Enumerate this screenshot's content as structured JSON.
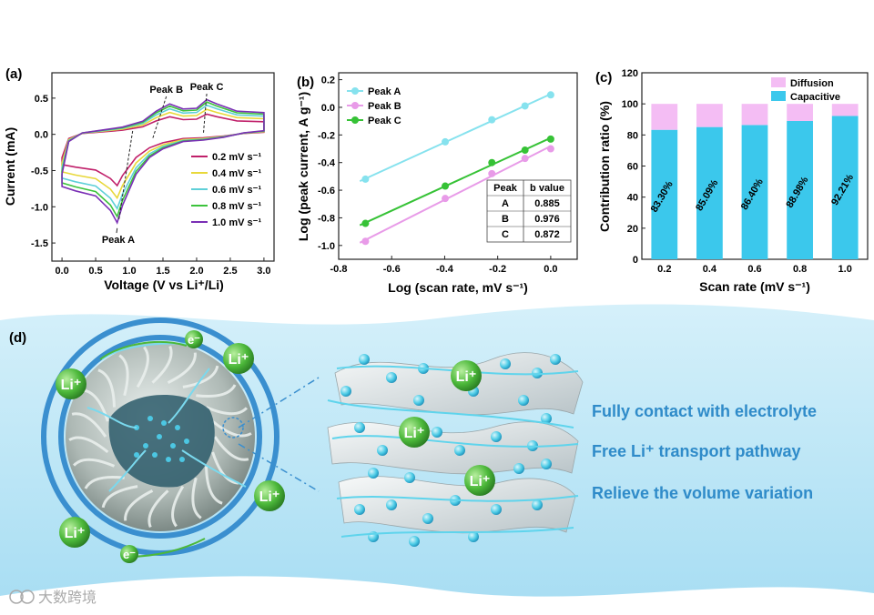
{
  "panels": {
    "a": "(a)",
    "b": "(b)",
    "c": "(c)",
    "d": "(d)"
  },
  "chart_data": [
    {
      "type": "line",
      "panel": "(a)",
      "xlabel": "Voltage (V vs Li⁺/Li)",
      "ylabel": "Current (mA)",
      "xlim": [
        -0.15,
        3.15
      ],
      "ylim": [
        -1.75,
        0.85
      ],
      "xticks": [
        "0.0",
        "0.5",
        "1.0",
        "1.5",
        "2.0",
        "2.5",
        "3.0"
      ],
      "yticks": [
        "0.5",
        "0.0",
        "-0.5",
        "-1.0",
        "-1.5"
      ],
      "annotations": [
        "Peak A",
        "Peak B",
        "Peak C"
      ],
      "series": [
        {
          "name": "0.2 mV s⁻¹",
          "color": "#c0206a",
          "scale": 0.58
        },
        {
          "name": "0.4 mV s⁻¹",
          "color": "#e8d83a",
          "scale": 0.72
        },
        {
          "name": "0.6 mV s⁻¹",
          "color": "#5fd0d8",
          "scale": 0.84
        },
        {
          "name": "0.8 mV s⁻¹",
          "color": "#3cc33c",
          "scale": 0.93
        },
        {
          "name": "1.0 mV s⁻¹",
          "color": "#7a2fb5",
          "scale": 1.0
        }
      ],
      "outer_curve": {
        "upper": [
          [
            0,
            -0.55
          ],
          [
            0.1,
            -0.1
          ],
          [
            0.3,
            0.02
          ],
          [
            0.6,
            0.06
          ],
          [
            0.9,
            0.1
          ],
          [
            1.2,
            0.18
          ],
          [
            1.4,
            0.32
          ],
          [
            1.6,
            0.42
          ],
          [
            1.8,
            0.35
          ],
          [
            2.0,
            0.36
          ],
          [
            2.15,
            0.48
          ],
          [
            2.3,
            0.42
          ],
          [
            2.6,
            0.32
          ],
          [
            3.0,
            0.3
          ]
        ],
        "lower": [
          [
            3.0,
            0.05
          ],
          [
            2.7,
            0.02
          ],
          [
            2.4,
            -0.04
          ],
          [
            2.1,
            -0.08
          ],
          [
            1.8,
            -0.1
          ],
          [
            1.5,
            -0.2
          ],
          [
            1.3,
            -0.32
          ],
          [
            1.1,
            -0.55
          ],
          [
            0.9,
            -0.98
          ],
          [
            0.82,
            -1.22
          ],
          [
            0.72,
            -1.05
          ],
          [
            0.5,
            -0.85
          ],
          [
            0.2,
            -0.78
          ],
          [
            0,
            -0.72
          ]
        ]
      }
    },
    {
      "type": "scatter",
      "panel": "(b)",
      "xlabel": "Log (scan rate, mV s⁻¹)",
      "ylabel": "Log (peak current, A g⁻¹)",
      "xlim": [
        -0.8,
        0.1
      ],
      "ylim": [
        -1.1,
        0.25
      ],
      "xticks": [
        "-0.8",
        "-0.6",
        "-0.4",
        "-0.2",
        "0.0"
      ],
      "yticks": [
        "0.2",
        "0.0",
        "-0.2",
        "-0.4",
        "-0.6",
        "-0.8",
        "-1.0"
      ],
      "series": [
        {
          "name": "Peak A",
          "color": "#86e2ee",
          "x": [
            -0.699,
            -0.398,
            -0.222,
            -0.097,
            0.0
          ],
          "y": [
            -0.52,
            -0.25,
            -0.09,
            0.01,
            0.09
          ]
        },
        {
          "name": "Peak B",
          "color": "#e89be8",
          "x": [
            -0.699,
            -0.398,
            -0.222,
            -0.097,
            0.0
          ],
          "y": [
            -0.97,
            -0.66,
            -0.48,
            -0.37,
            -0.3
          ]
        },
        {
          "name": "Peak C",
          "color": "#36c236",
          "x": [
            -0.699,
            -0.398,
            -0.222,
            -0.097,
            0.0
          ],
          "y": [
            -0.84,
            -0.57,
            -0.4,
            -0.31,
            -0.23
          ]
        }
      ],
      "table": {
        "headers": [
          "Peak",
          "b value"
        ],
        "rows": [
          [
            "A",
            "0.885"
          ],
          [
            "B",
            "0.976"
          ],
          [
            "C",
            "0.872"
          ]
        ]
      }
    },
    {
      "type": "bar",
      "panel": "(c)",
      "xlabel": "Scan rate (mV s⁻¹)",
      "ylabel": "Contribution ratio (%)",
      "ylim": [
        0,
        120
      ],
      "yticks": [
        "0",
        "20",
        "40",
        "60",
        "80",
        "100",
        "120"
      ],
      "categories": [
        "0.2",
        "0.4",
        "0.6",
        "0.8",
        "1.0"
      ],
      "series": [
        {
          "name": "Capacitive",
          "color": "#3bc8ec",
          "values": [
            83.3,
            85.09,
            86.4,
            88.98,
            92.21
          ]
        },
        {
          "name": "Diffusion",
          "color": "#f4bdf4",
          "values": [
            16.7,
            14.91,
            13.6,
            11.02,
            7.79
          ]
        }
      ],
      "bar_labels": [
        "83.30%",
        "85.09%",
        "86.40%",
        "88.98%",
        "92.21%"
      ]
    }
  ],
  "schematic": {
    "ion_label": "Li⁺",
    "electron_label": "e⁻",
    "features": [
      "Fully contact with electrolyte",
      "Free Li⁺ transport pathway",
      "Relieve the volume variation"
    ],
    "watermark": "大数跨境"
  }
}
